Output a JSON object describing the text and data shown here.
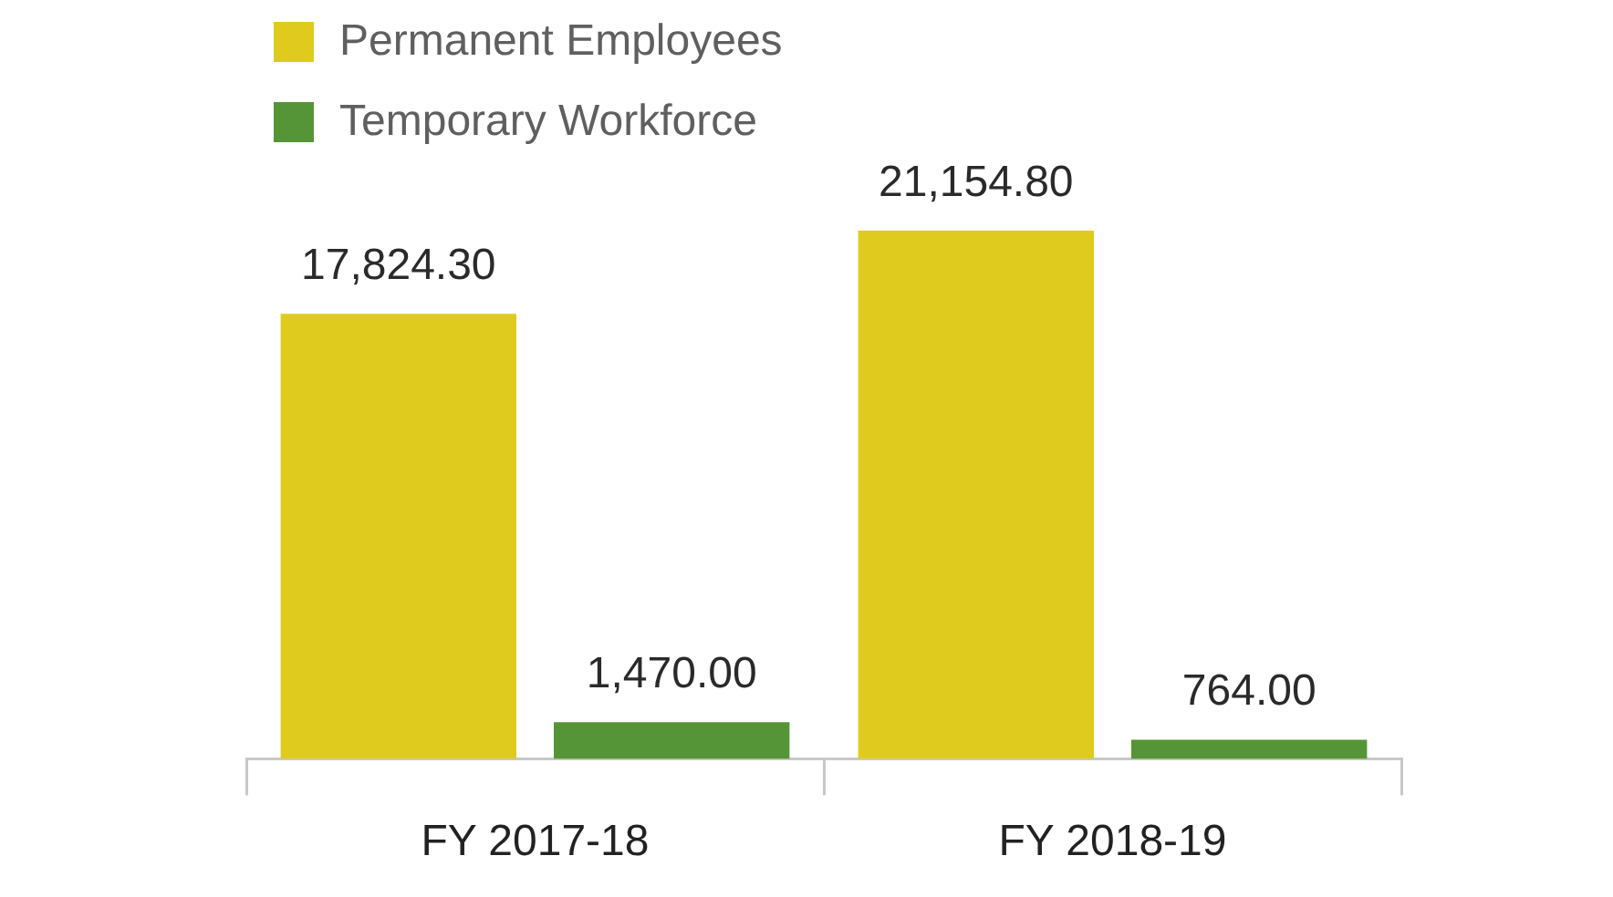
{
  "chart_data": {
    "type": "bar",
    "categories": [
      "FY 2017-18",
      "FY 2018-19"
    ],
    "series": [
      {
        "name": "Permanent Employees",
        "color": "#dfcb1e",
        "values": [
          17824.3,
          21154.8
        ],
        "value_labels": [
          "17,824.30",
          "21,154.80"
        ]
      },
      {
        "name": "Temporary Workforce",
        "color": "#559537",
        "values": [
          1470.0,
          764.0
        ],
        "value_labels": [
          "1,470.00",
          "764.00"
        ]
      }
    ],
    "legend": "top left"
  }
}
